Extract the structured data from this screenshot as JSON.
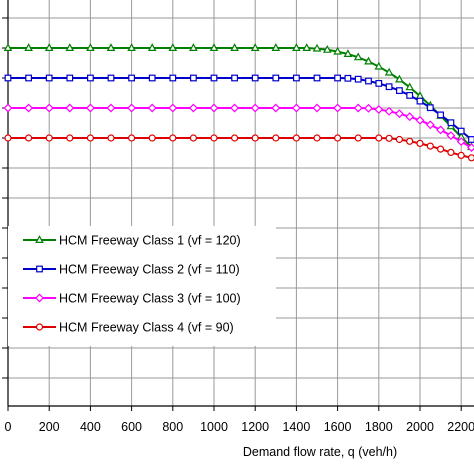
{
  "chart_data": {
    "type": "line",
    "xlabel": "Demand flow rate, q (veh/h)",
    "ylabel": "",
    "title": "",
    "xlim": [
      0,
      2300
    ],
    "ylim": [
      0,
      130
    ],
    "x_ticks": [
      0,
      200,
      400,
      600,
      800,
      1000,
      1200,
      1400,
      1600,
      1800,
      2000,
      2200
    ],
    "x_tick_labels": [
      "0",
      "200",
      "400",
      "600",
      "800",
      "1000",
      "1200",
      "1400",
      "1600",
      "1800",
      "2000",
      "2200"
    ],
    "grid": true,
    "legend_position": "left",
    "series": [
      {
        "name": "HCM Freeway Class 1 (vf = 120)",
        "color": "#008000",
        "marker": "triangle",
        "x": [
          0,
          100,
          200,
          300,
          400,
          500,
          600,
          700,
          800,
          900,
          1000,
          1100,
          1200,
          1300,
          1400,
          1450,
          1500,
          1550,
          1600,
          1650,
          1700,
          1750,
          1800,
          1850,
          1900,
          1950,
          2000,
          2050,
          2100,
          2150,
          2200,
          2250,
          2300
        ],
        "y": [
          120,
          120,
          120,
          120,
          120,
          120,
          120,
          120,
          120,
          120,
          120,
          120,
          120,
          120,
          120,
          120,
          119.8,
          119.4,
          118.8,
          118,
          116.9,
          115.5,
          113.8,
          111.8,
          109.5,
          106.9,
          104.0,
          100.8,
          97.4,
          93.9,
          90.3,
          87.0,
          85.0
        ]
      },
      {
        "name": "HCM Freeway Class 2 (vf = 110)",
        "color": "#0000cc",
        "marker": "square",
        "x": [
          0,
          100,
          200,
          300,
          400,
          500,
          600,
          700,
          800,
          900,
          1000,
          1100,
          1200,
          1300,
          1400,
          1500,
          1600,
          1650,
          1700,
          1750,
          1800,
          1850,
          1900,
          1950,
          2000,
          2050,
          2100,
          2150,
          2200,
          2250,
          2300
        ],
        "y": [
          110,
          110,
          110,
          110,
          110,
          110,
          110,
          110,
          110,
          110,
          110,
          110,
          110,
          110,
          110,
          110,
          110,
          109.9,
          109.6,
          109.0,
          108.2,
          107.1,
          105.8,
          104.2,
          102.3,
          100.1,
          97.7,
          95.1,
          92.3,
          89.5,
          87.0
        ]
      },
      {
        "name": "HCM Freeway Class 3 (vf = 100)",
        "color": "#ff00ff",
        "marker": "diamond",
        "x": [
          0,
          100,
          200,
          300,
          400,
          500,
          600,
          700,
          800,
          900,
          1000,
          1100,
          1200,
          1300,
          1400,
          1500,
          1600,
          1700,
          1750,
          1800,
          1850,
          1900,
          1950,
          2000,
          2050,
          2100,
          2150,
          2200,
          2250,
          2300
        ],
        "y": [
          100,
          100,
          100,
          100,
          100,
          100,
          100,
          100,
          100,
          100,
          100,
          100,
          100,
          100,
          100,
          100,
          100,
          100,
          99.9,
          99.5,
          98.9,
          98.1,
          97.1,
          95.9,
          94.4,
          92.7,
          90.8,
          88.8,
          86.8,
          85.0
        ]
      },
      {
        "name": "HCM Freeway Class 4 (vf = 90)",
        "color": "#dd0000",
        "marker": "circle",
        "x": [
          0,
          100,
          200,
          300,
          400,
          500,
          600,
          700,
          800,
          900,
          1000,
          1100,
          1200,
          1300,
          1400,
          1500,
          1600,
          1700,
          1800,
          1850,
          1900,
          1950,
          2000,
          2050,
          2100,
          2150,
          2200,
          2250,
          2300
        ],
        "y": [
          90,
          90,
          90,
          90,
          90,
          90,
          90,
          90,
          90,
          90,
          90,
          90,
          90,
          90,
          90,
          90,
          90,
          90,
          90,
          89.9,
          89.5,
          88.9,
          88.2,
          87.3,
          86.3,
          85.2,
          84.2,
          83.4,
          83.0
        ]
      }
    ]
  }
}
